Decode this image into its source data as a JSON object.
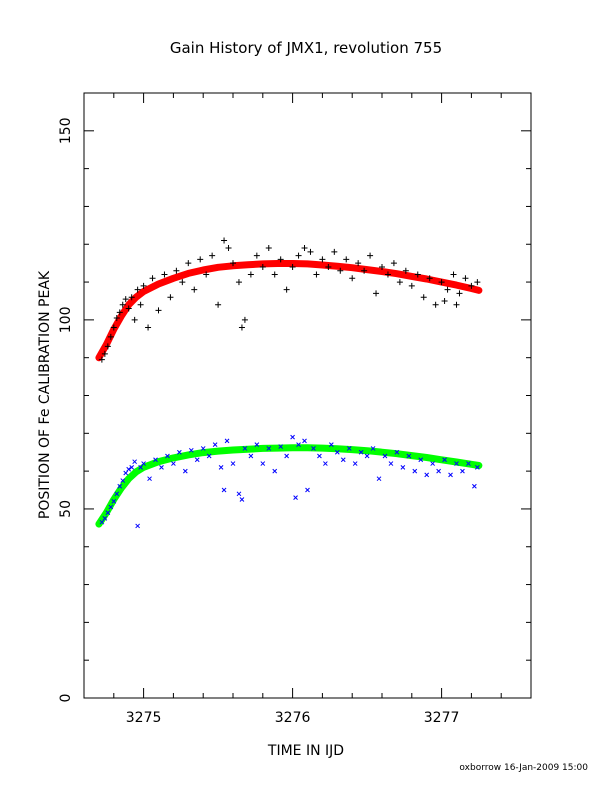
{
  "chart_data": {
    "type": "scatter",
    "title": "Gain History of JMX1, revolution 755",
    "xlabel": "TIME IN IJD",
    "ylabel": "POSITION OF Fe CALIBRATION PEAK",
    "xlim": [
      3274.6,
      3277.6
    ],
    "ylim": [
      0,
      160
    ],
    "x_ticks": [
      "3275",
      "3276",
      "3277"
    ],
    "y_ticks": [
      "0",
      "50",
      "100",
      "150"
    ],
    "grid": false,
    "footer": "oxborrow 16-Jan-2009 15:00",
    "series": [
      {
        "marker": "plus",
        "color": "#000000",
        "points": [
          [
            3274.72,
            89.5
          ],
          [
            3274.74,
            91.0
          ],
          [
            3274.76,
            93.0
          ],
          [
            3274.78,
            95.5
          ],
          [
            3274.8,
            98.0
          ],
          [
            3274.82,
            100.5
          ],
          [
            3274.84,
            102.0
          ],
          [
            3274.86,
            104.0
          ],
          [
            3274.88,
            105.5
          ],
          [
            3274.9,
            103.0
          ],
          [
            3274.92,
            106.0
          ],
          [
            3274.94,
            100.0
          ],
          [
            3274.96,
            108.0
          ],
          [
            3274.98,
            104.0
          ],
          [
            3275.0,
            109.0
          ],
          [
            3275.03,
            98.0
          ],
          [
            3275.06,
            111.0
          ],
          [
            3275.1,
            102.5
          ],
          [
            3275.14,
            112.0
          ],
          [
            3275.18,
            106.0
          ],
          [
            3275.22,
            113.0
          ],
          [
            3275.26,
            110.0
          ],
          [
            3275.3,
            115.0
          ],
          [
            3275.34,
            108.0
          ],
          [
            3275.38,
            116.0
          ],
          [
            3275.42,
            112.0
          ],
          [
            3275.46,
            117.0
          ],
          [
            3275.5,
            104.0
          ],
          [
            3275.54,
            121.0
          ],
          [
            3275.57,
            119.0
          ],
          [
            3275.6,
            115.0
          ],
          [
            3275.64,
            110.0
          ],
          [
            3275.66,
            98.0
          ],
          [
            3275.68,
            100.0
          ],
          [
            3275.72,
            112.0
          ],
          [
            3275.76,
            117.0
          ],
          [
            3275.8,
            114.0
          ],
          [
            3275.84,
            119.0
          ],
          [
            3275.88,
            112.0
          ],
          [
            3275.92,
            116.0
          ],
          [
            3275.96,
            108.0
          ],
          [
            3276.0,
            114.0
          ],
          [
            3276.04,
            117.0
          ],
          [
            3276.08,
            119.0
          ],
          [
            3276.12,
            118.0
          ],
          [
            3276.16,
            112.0
          ],
          [
            3276.2,
            116.0
          ],
          [
            3276.24,
            114.0
          ],
          [
            3276.28,
            118.0
          ],
          [
            3276.32,
            113.0
          ],
          [
            3276.36,
            116.0
          ],
          [
            3276.4,
            111.0
          ],
          [
            3276.44,
            115.0
          ],
          [
            3276.48,
            113.0
          ],
          [
            3276.52,
            117.0
          ],
          [
            3276.56,
            107.0
          ],
          [
            3276.6,
            114.0
          ],
          [
            3276.64,
            112.0
          ],
          [
            3276.68,
            115.0
          ],
          [
            3276.72,
            110.0
          ],
          [
            3276.76,
            113.0
          ],
          [
            3276.8,
            109.0
          ],
          [
            3276.84,
            112.0
          ],
          [
            3276.88,
            106.0
          ],
          [
            3276.92,
            111.0
          ],
          [
            3276.96,
            104.0
          ],
          [
            3277.0,
            110.0
          ],
          [
            3277.04,
            108.0
          ],
          [
            3277.08,
            112.0
          ],
          [
            3277.12,
            107.0
          ],
          [
            3277.16,
            111.0
          ],
          [
            3277.2,
            109.0
          ],
          [
            3277.24,
            110.0
          ],
          [
            3277.1,
            104.0
          ],
          [
            3277.02,
            105.0
          ]
        ]
      },
      {
        "marker": "cross",
        "color": "#0000ff",
        "points": [
          [
            3274.72,
            46.5
          ],
          [
            3274.74,
            47.5
          ],
          [
            3274.76,
            49.0
          ],
          [
            3274.78,
            50.5
          ],
          [
            3274.8,
            52.0
          ],
          [
            3274.82,
            54.0
          ],
          [
            3274.84,
            56.0
          ],
          [
            3274.86,
            57.5
          ],
          [
            3274.88,
            59.5
          ],
          [
            3274.9,
            60.5
          ],
          [
            3274.92,
            61.0
          ],
          [
            3274.94,
            62.5
          ],
          [
            3274.96,
            45.5
          ],
          [
            3274.98,
            61.0
          ],
          [
            3275.0,
            62.0
          ],
          [
            3275.04,
            58.0
          ],
          [
            3275.08,
            63.0
          ],
          [
            3275.12,
            61.0
          ],
          [
            3275.16,
            64.0
          ],
          [
            3275.2,
            62.0
          ],
          [
            3275.24,
            65.0
          ],
          [
            3275.28,
            60.0
          ],
          [
            3275.32,
            65.5
          ],
          [
            3275.36,
            63.0
          ],
          [
            3275.4,
            66.0
          ],
          [
            3275.44,
            64.0
          ],
          [
            3275.48,
            67.0
          ],
          [
            3275.52,
            61.0
          ],
          [
            3275.56,
            68.0
          ],
          [
            3275.6,
            62.0
          ],
          [
            3275.64,
            54.0
          ],
          [
            3275.66,
            52.5
          ],
          [
            3275.68,
            66.0
          ],
          [
            3275.72,
            64.0
          ],
          [
            3275.76,
            67.0
          ],
          [
            3275.8,
            62.0
          ],
          [
            3275.84,
            66.0
          ],
          [
            3275.88,
            60.0
          ],
          [
            3275.92,
            66.5
          ],
          [
            3275.96,
            64.0
          ],
          [
            3276.0,
            69.0
          ],
          [
            3276.04,
            67.0
          ],
          [
            3276.08,
            68.0
          ],
          [
            3276.1,
            55.0
          ],
          [
            3276.14,
            66.0
          ],
          [
            3276.18,
            64.0
          ],
          [
            3276.22,
            62.0
          ],
          [
            3276.26,
            67.0
          ],
          [
            3276.3,
            65.0
          ],
          [
            3276.34,
            63.0
          ],
          [
            3276.38,
            66.0
          ],
          [
            3276.42,
            62.0
          ],
          [
            3276.46,
            65.0
          ],
          [
            3276.5,
            64.0
          ],
          [
            3276.54,
            66.0
          ],
          [
            3276.58,
            58.0
          ],
          [
            3276.62,
            64.0
          ],
          [
            3276.66,
            62.0
          ],
          [
            3276.7,
            65.0
          ],
          [
            3276.74,
            61.0
          ],
          [
            3276.78,
            64.0
          ],
          [
            3276.82,
            60.0
          ],
          [
            3276.86,
            63.0
          ],
          [
            3276.9,
            59.0
          ],
          [
            3276.94,
            62.0
          ],
          [
            3276.98,
            60.0
          ],
          [
            3277.02,
            63.0
          ],
          [
            3277.06,
            59.0
          ],
          [
            3277.1,
            62.0
          ],
          [
            3277.14,
            60.0
          ],
          [
            3277.18,
            62.0
          ],
          [
            3277.22,
            56.0
          ],
          [
            3277.24,
            61.0
          ],
          [
            3276.02,
            53.0
          ],
          [
            3275.54,
            55.0
          ]
        ]
      }
    ],
    "fits": [
      {
        "color": "#ff0000",
        "points": [
          [
            3274.7,
            90.0
          ],
          [
            3274.75,
            93.5
          ],
          [
            3274.8,
            97.5
          ],
          [
            3274.85,
            101.0
          ],
          [
            3274.9,
            104.0
          ],
          [
            3274.95,
            106.0
          ],
          [
            3275.0,
            107.5
          ],
          [
            3275.1,
            109.5
          ],
          [
            3275.2,
            111.0
          ],
          [
            3275.3,
            112.3
          ],
          [
            3275.4,
            113.2
          ],
          [
            3275.5,
            113.9
          ],
          [
            3275.6,
            114.3
          ],
          [
            3275.7,
            114.6
          ],
          [
            3275.8,
            114.8
          ],
          [
            3275.9,
            114.9
          ],
          [
            3276.0,
            114.9
          ],
          [
            3276.1,
            114.8
          ],
          [
            3276.2,
            114.5
          ],
          [
            3276.3,
            114.2
          ],
          [
            3276.4,
            113.8
          ],
          [
            3276.5,
            113.3
          ],
          [
            3276.6,
            112.8
          ],
          [
            3276.7,
            112.2
          ],
          [
            3276.8,
            111.5
          ],
          [
            3276.9,
            110.8
          ],
          [
            3277.0,
            110.0
          ],
          [
            3277.1,
            109.2
          ],
          [
            3277.2,
            108.3
          ],
          [
            3277.25,
            107.8
          ]
        ]
      },
      {
        "color": "#00ff00",
        "points": [
          [
            3274.7,
            46.0
          ],
          [
            3274.75,
            49.0
          ],
          [
            3274.8,
            52.5
          ],
          [
            3274.85,
            55.5
          ],
          [
            3274.9,
            58.0
          ],
          [
            3274.95,
            59.8
          ],
          [
            3275.0,
            61.0
          ],
          [
            3275.1,
            62.5
          ],
          [
            3275.2,
            63.5
          ],
          [
            3275.3,
            64.3
          ],
          [
            3275.4,
            64.9
          ],
          [
            3275.5,
            65.3
          ],
          [
            3275.6,
            65.6
          ],
          [
            3275.7,
            65.8
          ],
          [
            3275.8,
            66.0
          ],
          [
            3275.9,
            66.1
          ],
          [
            3276.0,
            66.2
          ],
          [
            3276.1,
            66.2
          ],
          [
            3276.2,
            66.1
          ],
          [
            3276.3,
            65.9
          ],
          [
            3276.4,
            65.7
          ],
          [
            3276.5,
            65.4
          ],
          [
            3276.6,
            65.0
          ],
          [
            3276.7,
            64.6
          ],
          [
            3276.8,
            64.1
          ],
          [
            3276.9,
            63.6
          ],
          [
            3277.0,
            63.0
          ],
          [
            3277.1,
            62.4
          ],
          [
            3277.2,
            61.8
          ],
          [
            3277.25,
            61.5
          ]
        ]
      }
    ]
  }
}
